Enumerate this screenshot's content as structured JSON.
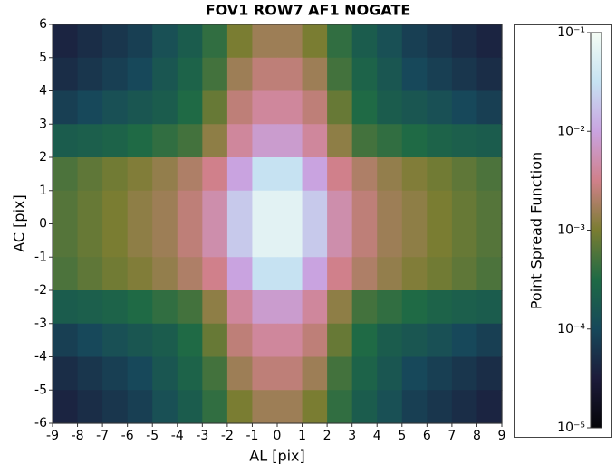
{
  "chart_data": {
    "type": "heatmap",
    "title": "FOV1 ROW7 AF1 NOGATE",
    "x_label": "AL [pix]",
    "y_label": "AC [pix]",
    "xlim": [
      -9,
      9
    ],
    "ylim": [
      -6,
      6
    ],
    "xticks": [
      -9,
      -8,
      -7,
      -6,
      -5,
      -4,
      -3,
      -2,
      -1,
      0,
      1,
      2,
      3,
      4,
      5,
      6,
      7,
      8,
      9
    ],
    "yticks": [
      -6,
      -5,
      -4,
      -3,
      -2,
      -1,
      0,
      1,
      2,
      3,
      4,
      5,
      6
    ],
    "z": [
      [
        4e-05,
        5e-05,
        6.3e-05,
        7.9e-05,
        0.00013,
        0.0002,
        0.0004,
        0.001,
        0.0016,
        0.0016,
        0.001,
        0.0004,
        0.0002,
        0.00013,
        7.9e-05,
        6.3e-05,
        5e-05,
        4e-05
      ],
      [
        5e-05,
        6.3e-05,
        7.9e-05,
        0.0001,
        0.00016,
        0.00025,
        0.0005,
        0.0016,
        0.0025,
        0.0025,
        0.0016,
        0.0005,
        0.00025,
        0.00016,
        0.0001,
        7.9e-05,
        6.3e-05,
        5e-05
      ],
      [
        7.9e-05,
        0.0001,
        0.00013,
        0.00016,
        0.0002,
        0.00032,
        0.00079,
        0.0025,
        0.004,
        0.004,
        0.0025,
        0.00079,
        0.00032,
        0.0002,
        0.00016,
        0.00013,
        0.0001,
        7.9e-05
      ],
      [
        0.0002,
        0.00022,
        0.00025,
        0.00032,
        0.0004,
        0.0005,
        0.0013,
        0.004,
        0.0079,
        0.0079,
        0.004,
        0.0013,
        0.0005,
        0.0004,
        0.00032,
        0.00025,
        0.00022,
        0.0002
      ],
      [
        0.00056,
        0.00071,
        0.00089,
        0.0011,
        0.0014,
        0.002,
        0.0032,
        0.01,
        0.032,
        0.032,
        0.01,
        0.0032,
        0.002,
        0.0014,
        0.0011,
        0.00089,
        0.00071,
        0.00056
      ],
      [
        0.00063,
        0.00079,
        0.001,
        0.0013,
        0.0016,
        0.0025,
        0.005,
        0.02,
        0.063,
        0.063,
        0.02,
        0.005,
        0.0025,
        0.0016,
        0.0013,
        0.001,
        0.00079,
        0.00063
      ],
      [
        0.00063,
        0.00079,
        0.001,
        0.0013,
        0.0016,
        0.0025,
        0.005,
        0.02,
        0.063,
        0.063,
        0.02,
        0.005,
        0.0025,
        0.0016,
        0.0013,
        0.001,
        0.00079,
        0.00063
      ],
      [
        0.00056,
        0.00071,
        0.00089,
        0.0011,
        0.0014,
        0.002,
        0.0032,
        0.01,
        0.032,
        0.032,
        0.01,
        0.0032,
        0.002,
        0.0014,
        0.0011,
        0.00089,
        0.00071,
        0.00056
      ],
      [
        0.0002,
        0.00022,
        0.00025,
        0.00032,
        0.0004,
        0.0005,
        0.0013,
        0.004,
        0.0079,
        0.0079,
        0.004,
        0.0013,
        0.0005,
        0.0004,
        0.00032,
        0.00025,
        0.00022,
        0.0002
      ],
      [
        7.9e-05,
        0.0001,
        0.00013,
        0.00016,
        0.0002,
        0.00032,
        0.00079,
        0.0025,
        0.004,
        0.004,
        0.0025,
        0.00079,
        0.00032,
        0.0002,
        0.00016,
        0.00013,
        0.0001,
        7.9e-05
      ],
      [
        5e-05,
        6.3e-05,
        7.9e-05,
        0.0001,
        0.00016,
        0.00025,
        0.0005,
        0.0016,
        0.0025,
        0.0025,
        0.0016,
        0.0005,
        0.00025,
        0.00016,
        0.0001,
        7.9e-05,
        6.3e-05,
        5e-05
      ],
      [
        4e-05,
        5e-05,
        6.3e-05,
        7.9e-05,
        0.00013,
        0.0002,
        0.0004,
        0.001,
        0.0016,
        0.0016,
        0.001,
        0.0004,
        0.0002,
        0.00013,
        7.9e-05,
        6.3e-05,
        5e-05,
        4e-05
      ]
    ],
    "colorbar_label": "Point Spread Function",
    "clim": [
      1e-05,
      0.1
    ],
    "color_log_scale": true,
    "cticks": [
      {
        "value": 0.1,
        "label": "10⁻¹"
      },
      {
        "value": 0.01,
        "label": "10⁻²"
      },
      {
        "value": 0.001,
        "label": "10⁻³"
      },
      {
        "value": 0.0001,
        "label": "10⁻⁴"
      },
      {
        "value": 1e-05,
        "label": "10⁻⁵"
      }
    ],
    "colors": [
      "#050508",
      "#1c1b3a",
      "#17485a",
      "#1e6a45",
      "#7a7d32",
      "#d0808a",
      "#c9a3e0",
      "#c6e2f2",
      "#f4fcf4"
    ]
  }
}
